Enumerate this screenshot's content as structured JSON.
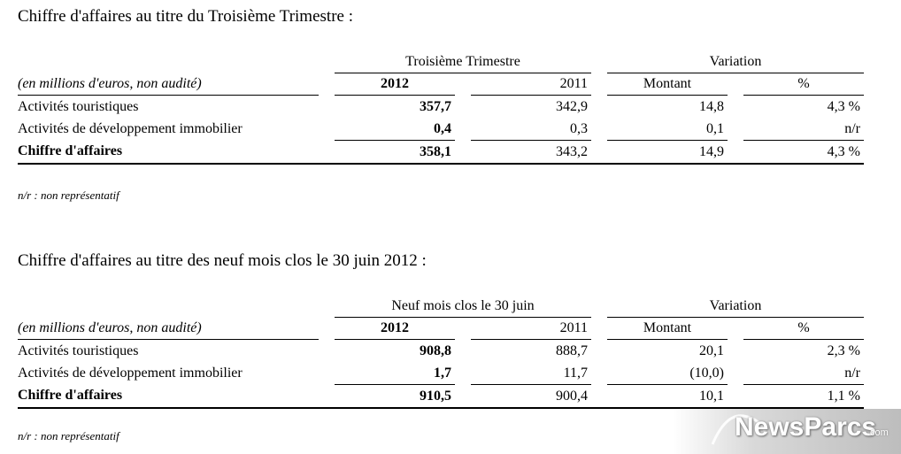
{
  "section1": {
    "title": "Chiffre d'affaires au titre du Troisième Trimestre :",
    "period_header": "Troisième Trimestre",
    "variation_header": "Variation",
    "unit_label": "(en millions d'euros, non audité)",
    "columns": [
      "2012",
      "2011",
      "Montant",
      "%"
    ],
    "rows": [
      {
        "label": "Activités touristiques",
        "y2012": "357,7",
        "y2011": "342,9",
        "amount": "14,8",
        "pct": "4,3 %"
      },
      {
        "label": "Activités de développement immobilier",
        "y2012": "0,4",
        "y2011": "0,3",
        "amount": "0,1",
        "pct": "n/r"
      },
      {
        "label": "Chiffre d'affaires",
        "y2012": "358,1",
        "y2011": "343,2",
        "amount": "14,9",
        "pct": "4,3 %"
      }
    ],
    "note": "n/r : non représentatif"
  },
  "section2": {
    "title": "Chiffre d'affaires au titre des neuf mois clos le 30 juin 2012 :",
    "period_header": "Neuf mois clos le 30 juin",
    "variation_header": "Variation",
    "unit_label": "(en millions d'euros, non audité)",
    "columns": [
      "2012",
      "2011",
      "Montant",
      "%"
    ],
    "rows": [
      {
        "label": "Activités touristiques",
        "y2012": "908,8",
        "y2011": "888,7",
        "amount": "20,1",
        "pct": "2,3 %"
      },
      {
        "label": "Activités de développement immobilier",
        "y2012": "1,7",
        "y2011": "11,7",
        "amount": "(10,0)",
        "pct": "n/r"
      },
      {
        "label": "Chiffre d'affaires",
        "y2012": "910,5",
        "y2011": "900,4",
        "amount": "10,1",
        "pct": "1,1 %"
      }
    ],
    "note": "n/r : non représentatif"
  },
  "watermark": {
    "brand": "NewsParcs",
    "suffix": ".com"
  }
}
